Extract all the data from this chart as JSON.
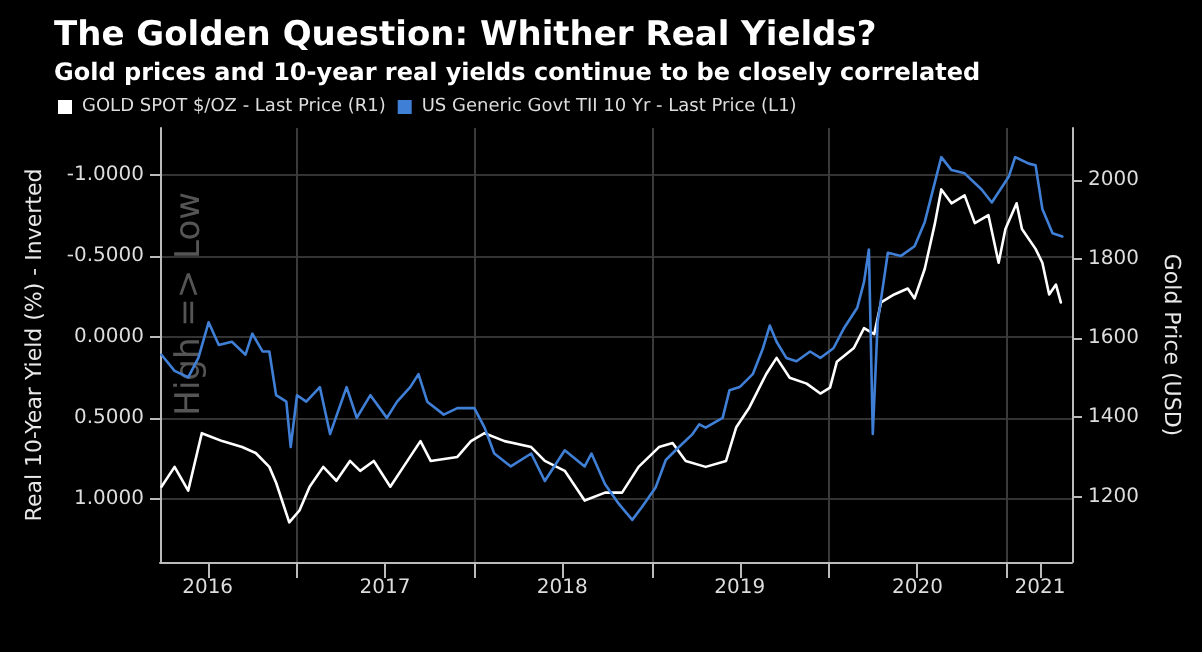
{
  "chart_data": {
    "type": "line",
    "title": "The Golden Question: Whither Real Yields?",
    "subtitle": "Gold prices and 10-year real yields continue to be closely correlated",
    "ylabel": "Real 10-Year Yield (%) - Inverted",
    "y2label": "Gold Price (USD)",
    "annotations": [
      "High => Low"
    ],
    "legend": "top left",
    "grid": true,
    "marker": "none",
    "line_style": "solid",
    "xlim": [
      "2016-03-25",
      "2021-05-15"
    ],
    "xticks": [
      {
        "value": "2016-07-01",
        "label": "2016"
      },
      {
        "value": "2017-01-01",
        "label": null
      },
      {
        "value": "2017-07-01",
        "label": "2017"
      },
      {
        "value": "2018-01-01",
        "label": null
      },
      {
        "value": "2018-07-01",
        "label": "2018"
      },
      {
        "value": "2019-01-01",
        "label": null
      },
      {
        "value": "2019-07-01",
        "label": "2019"
      },
      {
        "value": "2020-01-01",
        "label": null
      },
      {
        "value": "2020-07-01",
        "label": "2020"
      },
      {
        "value": "2021-01-01",
        "label": null
      },
      {
        "value": "2021-03-10",
        "label": "2021"
      }
    ],
    "ylim": [
      1.39,
      -1.29
    ],
    "yticks": [
      {
        "value": -1,
        "label": "-1.0000"
      },
      {
        "value": -0.5,
        "label": "-0.5000"
      },
      {
        "value": 0,
        "label": "0.0000"
      },
      {
        "value": 0.5,
        "label": "0.5000"
      },
      {
        "value": 1,
        "label": "1.0000"
      }
    ],
    "y2lim": [
      1035,
      2130
    ],
    "y2ticks": [
      1200,
      1400,
      1600,
      1800,
      2000
    ],
    "series": [
      {
        "name": "GOLD SPOT $/OZ - Last Price (R1)",
        "color": "#ffffff",
        "axis": "y2",
        "x": [
          "2016-03-28",
          "2016-04-24",
          "2016-05-22",
          "2016-06-19",
          "2016-07-31",
          "2016-09-10",
          "2016-10-08",
          "2016-11-05",
          "2016-11-19",
          "2016-12-16",
          "2017-01-06",
          "2017-01-27",
          "2017-02-24",
          "2017-03-23",
          "2017-04-20",
          "2017-05-11",
          "2017-06-08",
          "2017-07-12",
          "2017-08-08",
          "2017-09-12",
          "2017-10-03",
          "2017-11-27",
          "2017-12-25",
          "2018-01-22",
          "2018-03-04",
          "2018-04-28",
          "2018-05-26",
          "2018-07-06",
          "2018-08-16",
          "2018-09-27",
          "2018-11-01",
          "2018-12-05",
          "2019-01-16",
          "2019-02-13",
          "2019-03-12",
          "2019-04-22",
          "2019-06-03",
          "2019-06-24",
          "2019-07-21",
          "2019-08-25",
          "2019-09-15",
          "2019-10-12",
          "2019-11-16",
          "2019-12-14",
          "2020-01-03",
          "2020-01-17",
          "2020-02-21",
          "2020-03-13",
          "2020-04-03",
          "2020-04-17",
          "2020-05-14",
          "2020-06-11",
          "2020-06-25",
          "2020-07-16",
          "2020-08-06",
          "2020-08-19",
          "2020-09-09",
          "2020-10-06",
          "2020-10-27",
          "2020-11-24",
          "2020-12-15",
          "2020-12-29",
          "2021-01-21",
          "2021-02-01",
          "2021-03-01",
          "2021-03-15",
          "2021-03-29",
          "2021-04-12",
          "2021-04-22"
        ],
        "values": [
          1225,
          1275,
          1215,
          1360,
          1340,
          1325,
          1310,
          1275,
          1235,
          1135,
          1165,
          1225,
          1275,
          1240,
          1290,
          1265,
          1290,
          1225,
          1275,
          1340,
          1290,
          1300,
          1340,
          1360,
          1340,
          1325,
          1290,
          1265,
          1190,
          1210,
          1210,
          1275,
          1325,
          1335,
          1290,
          1275,
          1290,
          1375,
          1425,
          1510,
          1550,
          1500,
          1485,
          1460,
          1475,
          1540,
          1575,
          1625,
          1610,
          1690,
          1710,
          1725,
          1700,
          1775,
          1890,
          1975,
          1940,
          1960,
          1890,
          1910,
          1790,
          1875,
          1940,
          1875,
          1825,
          1790,
          1710,
          1735,
          1690
        ]
      },
      {
        "name": "US Generic Govt TII 10 Yr - Last Price (L1)",
        "color": "#3f7fd6",
        "axis": "y",
        "x": [
          "2016-03-28",
          "2016-04-24",
          "2016-05-22",
          "2016-06-12",
          "2016-07-03",
          "2016-07-24",
          "2016-08-20",
          "2016-09-17",
          "2016-10-01",
          "2016-10-22",
          "2016-11-05",
          "2016-11-19",
          "2016-12-10",
          "2016-12-19",
          "2017-01-01",
          "2017-01-20",
          "2017-02-17",
          "2017-03-10",
          "2017-04-13",
          "2017-05-04",
          "2017-06-01",
          "2017-07-05",
          "2017-07-26",
          "2017-08-22",
          "2017-09-08",
          "2017-09-26",
          "2017-10-30",
          "2017-11-27",
          "2018-01-01",
          "2018-01-22",
          "2018-02-11",
          "2018-03-17",
          "2018-04-28",
          "2018-05-26",
          "2018-07-06",
          "2018-08-16",
          "2018-08-30",
          "2018-09-27",
          "2018-10-25",
          "2018-11-22",
          "2018-12-12",
          "2019-01-09",
          "2019-01-30",
          "2019-02-26",
          "2019-03-26",
          "2019-04-09",
          "2019-04-22",
          "2019-05-27",
          "2019-06-10",
          "2019-07-01",
          "2019-07-28",
          "2019-08-18",
          "2019-09-01",
          "2019-09-15",
          "2019-10-05",
          "2019-10-26",
          "2019-11-23",
          "2019-12-14",
          "2020-01-10",
          "2020-01-31",
          "2020-02-28",
          "2020-03-13",
          "2020-03-23",
          "2020-03-31",
          "2020-04-10",
          "2020-05-01",
          "2020-05-28",
          "2020-06-25",
          "2020-07-16",
          "2020-08-19",
          "2020-09-09",
          "2020-10-06",
          "2020-11-10",
          "2020-12-01",
          "2021-01-05",
          "2021-01-18",
          "2021-02-15",
          "2021-03-01",
          "2021-03-15",
          "2021-04-05",
          "2021-04-25"
        ],
        "values": [
          0.11,
          0.21,
          0.25,
          0.13,
          -0.09,
          0.05,
          0.03,
          0.11,
          -0.02,
          0.09,
          0.09,
          0.36,
          0.4,
          0.68,
          0.36,
          0.4,
          0.31,
          0.6,
          0.31,
          0.5,
          0.36,
          0.5,
          0.4,
          0.31,
          0.23,
          0.4,
          0.48,
          0.44,
          0.44,
          0.56,
          0.72,
          0.8,
          0.72,
          0.89,
          0.7,
          0.8,
          0.72,
          0.91,
          1.03,
          1.13,
          1.05,
          0.93,
          0.76,
          0.68,
          0.6,
          0.54,
          0.56,
          0.5,
          0.33,
          0.31,
          0.23,
          0.07,
          -0.07,
          0.03,
          0.13,
          0.15,
          0.09,
          0.13,
          0.07,
          -0.05,
          -0.18,
          -0.34,
          -0.54,
          0.6,
          -0.09,
          -0.52,
          -0.5,
          -0.56,
          -0.71,
          -1.11,
          -1.03,
          -1.01,
          -0.91,
          -0.83,
          -0.99,
          -1.11,
          -1.07,
          -1.06,
          -0.79,
          -0.64,
          -0.62
        ]
      }
    ]
  }
}
